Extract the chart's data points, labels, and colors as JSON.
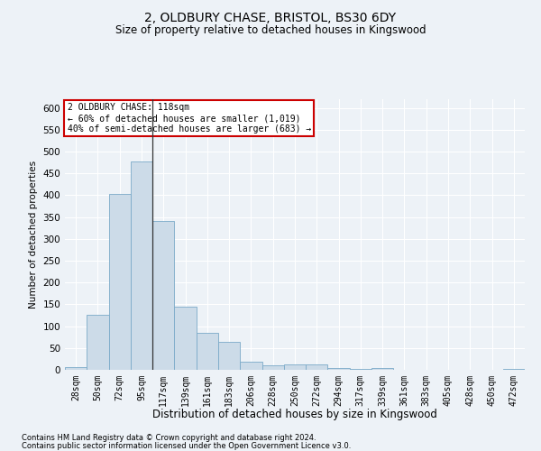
{
  "title": "2, OLDBURY CHASE, BRISTOL, BS30 6DY",
  "subtitle": "Size of property relative to detached houses in Kingswood",
  "xlabel": "Distribution of detached houses by size in Kingswood",
  "ylabel": "Number of detached properties",
  "bar_labels": [
    "28sqm",
    "50sqm",
    "72sqm",
    "95sqm",
    "117sqm",
    "139sqm",
    "161sqm",
    "183sqm",
    "206sqm",
    "228sqm",
    "250sqm",
    "272sqm",
    "294sqm",
    "317sqm",
    "339sqm",
    "361sqm",
    "383sqm",
    "405sqm",
    "428sqm",
    "450sqm",
    "472sqm"
  ],
  "bar_values": [
    7,
    127,
    404,
    477,
    340,
    145,
    85,
    65,
    18,
    10,
    13,
    13,
    5,
    2,
    4,
    0,
    0,
    0,
    0,
    0,
    3
  ],
  "bar_color": "#ccdbe8",
  "bar_edge_color": "#7aaac8",
  "property_line_index": 4,
  "annotation_line1": "2 OLDBURY CHASE: 118sqm",
  "annotation_line2": "← 60% of detached houses are smaller (1,019)",
  "annotation_line3": "40% of semi-detached houses are larger (683) →",
  "annotation_box_color": "#ffffff",
  "annotation_box_edge": "#cc0000",
  "ylim": [
    0,
    620
  ],
  "yticks": [
    0,
    50,
    100,
    150,
    200,
    250,
    300,
    350,
    400,
    450,
    500,
    550,
    600
  ],
  "footnote1": "Contains HM Land Registry data © Crown copyright and database right 2024.",
  "footnote2": "Contains public sector information licensed under the Open Government Licence v3.0.",
  "background_color": "#edf2f7",
  "plot_background": "#edf2f7",
  "title_fontsize": 10,
  "subtitle_fontsize": 8.5,
  "xlabel_fontsize": 8.5,
  "ylabel_fontsize": 7.5,
  "tick_fontsize": 7,
  "footnote_fontsize": 6
}
